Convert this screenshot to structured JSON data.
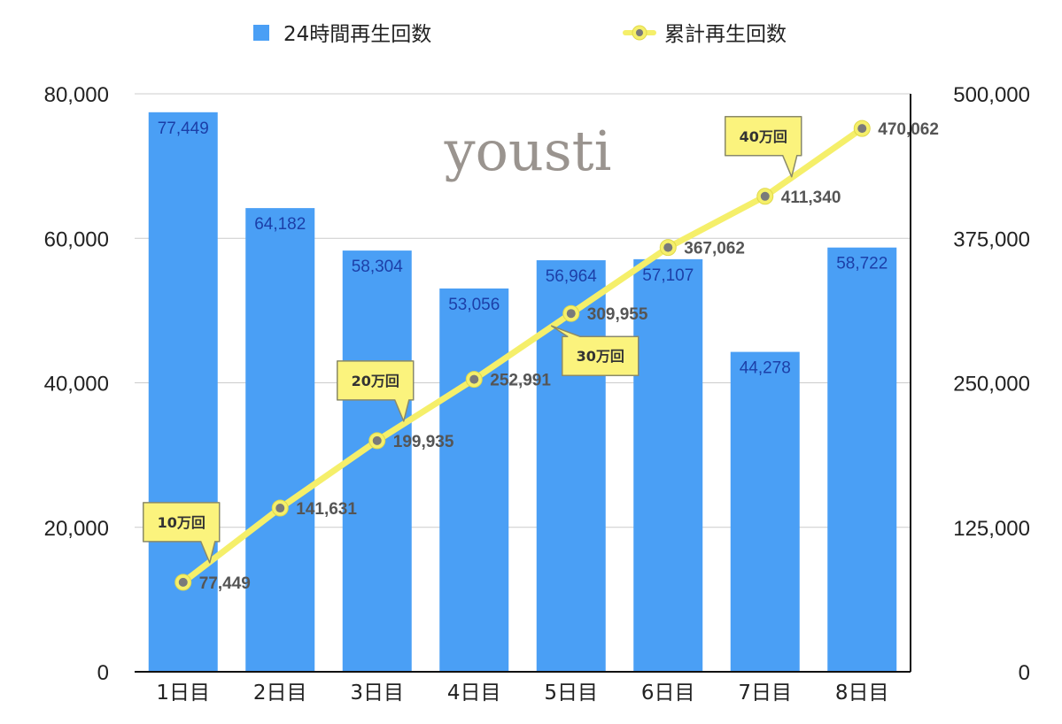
{
  "chart_data": {
    "type": "bar",
    "categories": [
      "1日目",
      "2日目",
      "3日目",
      "4日目",
      "5日目",
      "6日目",
      "7日目",
      "8日目"
    ],
    "series": [
      {
        "name": "24時間再生回数",
        "type": "bar",
        "axis": "left",
        "color": "#4a9ff5",
        "values": [
          77449,
          64182,
          58304,
          53056,
          56964,
          57107,
          44278,
          58722
        ],
        "labels": [
          "77,449",
          "64,182",
          "58,304",
          "53,056",
          "56,964",
          "57,107",
          "44,278",
          "58,722"
        ]
      },
      {
        "name": "累計再生回数",
        "type": "line",
        "axis": "right",
        "color": "#f5ef6a",
        "marker_color": "#7a7a7a",
        "values": [
          77449,
          141631,
          199935,
          252991,
          309955,
          367062,
          411340,
          470062
        ],
        "labels": [
          "77,449",
          "141,631",
          "199,935",
          "252,991",
          "309,955",
          "367,062",
          "411,340",
          "470,062"
        ]
      }
    ],
    "left_axis": {
      "ylim": [
        0,
        80000
      ],
      "ticks": [
        "0",
        "20,000",
        "40,000",
        "60,000",
        "80,000"
      ]
    },
    "right_axis": {
      "ylim": [
        0,
        500000
      ],
      "ticks": [
        "0",
        "125,000",
        "250,000",
        "375,000",
        "500,000"
      ]
    },
    "grid": true,
    "legend_position": "top",
    "callouts": [
      {
        "text": "10万回",
        "index": 0,
        "direction": "above"
      },
      {
        "text": "20万回",
        "index": 2,
        "direction": "above"
      },
      {
        "text": "30万回",
        "index": 4,
        "direction": "below"
      },
      {
        "text": "40万回",
        "index": 6,
        "direction": "above"
      }
    ],
    "logo_text": "yousti"
  }
}
